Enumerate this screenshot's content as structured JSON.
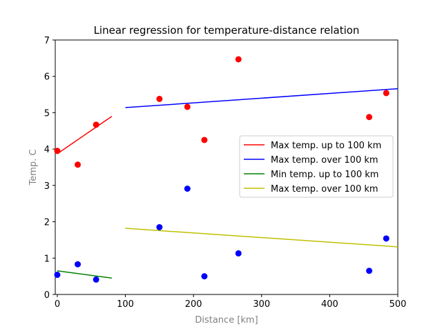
{
  "chart_data": {
    "type": "scatter",
    "title": "Linear regression for temperature-distance relation",
    "xlabel": "Distance [km]",
    "ylabel": "Temp. C",
    "xlim": [
      -3,
      500
    ],
    "ylim": [
      0,
      7
    ],
    "xticks": [
      0,
      100,
      200,
      300,
      400,
      500
    ],
    "yticks": [
      0,
      1,
      2,
      3,
      4,
      5,
      6,
      7
    ],
    "grid": false,
    "legend_position": "center-right",
    "scatter_series": [
      {
        "color": "#ff0000",
        "points": [
          {
            "x": 0,
            "y": 3.95
          },
          {
            "x": 30,
            "y": 3.57
          },
          {
            "x": 57,
            "y": 4.67
          },
          {
            "x": 150,
            "y": 5.38
          },
          {
            "x": 191,
            "y": 5.16
          },
          {
            "x": 216,
            "y": 4.25
          },
          {
            "x": 266,
            "y": 6.47
          },
          {
            "x": 458,
            "y": 4.88
          },
          {
            "x": 483,
            "y": 5.54
          }
        ]
      },
      {
        "color": "#0000ff",
        "points": [
          {
            "x": 0,
            "y": 0.54
          },
          {
            "x": 30,
            "y": 0.83
          },
          {
            "x": 57,
            "y": 0.41
          },
          {
            "x": 150,
            "y": 1.85
          },
          {
            "x": 191,
            "y": 2.91
          },
          {
            "x": 216,
            "y": 0.5
          },
          {
            "x": 266,
            "y": 1.13
          },
          {
            "x": 458,
            "y": 0.65
          },
          {
            "x": 483,
            "y": 1.54
          }
        ]
      }
    ],
    "line_series": [
      {
        "name": "Max temp. up to 100 km",
        "color": "#ff0000",
        "x": [
          0,
          80
        ],
        "y": [
          3.87,
          4.9
        ]
      },
      {
        "name": "Max temp. over 100 km",
        "color": "#0000ff",
        "x": [
          100,
          500
        ],
        "y": [
          5.14,
          5.66
        ]
      },
      {
        "name": "Min temp. up to 100 km",
        "color": "#008000",
        "x": [
          0,
          80
        ],
        "y": [
          0.65,
          0.45
        ]
      },
      {
        "name": "Max temp. over 100 km",
        "color": "#bfbf00",
        "x": [
          100,
          500
        ],
        "y": [
          1.82,
          1.31
        ]
      }
    ]
  }
}
